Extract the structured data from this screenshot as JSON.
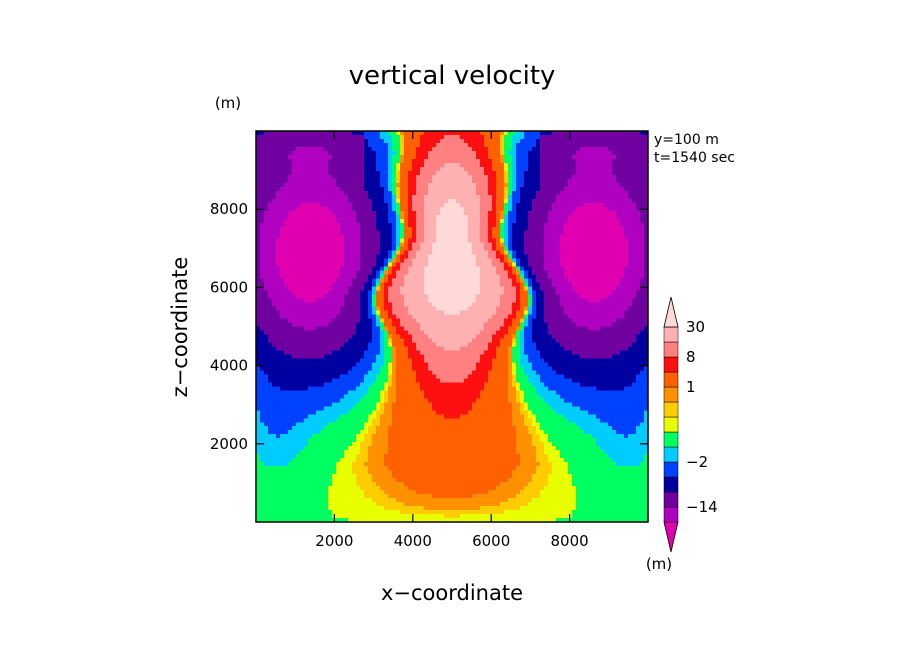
{
  "chart_data": {
    "type": "heatmap",
    "title": "vertical velocity",
    "xlabel": "x−coordinate",
    "ylabel": "z−coordinate",
    "y_unit": "(m)",
    "annotations": [
      "y=100 m",
      "t=1540 sec"
    ],
    "xlim": [
      0,
      10000
    ],
    "ylim": [
      0,
      10000
    ],
    "xticks": [
      2000,
      4000,
      6000,
      8000
    ],
    "xtick_labels": [
      "2000",
      "4000",
      "6000",
      "8000"
    ],
    "yticks": [
      2000,
      4000,
      6000,
      8000
    ],
    "ytick_labels": [
      "2000",
      "4000",
      "6000",
      "8000"
    ],
    "colorbar": {
      "unit": "(m)",
      "labels": [
        {
          "text": "30",
          "level": 30
        },
        {
          "text": "8",
          "level": 8
        },
        {
          "text": "1",
          "level": 1
        },
        {
          "text": "−2",
          "level": -2
        },
        {
          "text": "−14",
          "level": -14
        }
      ],
      "bands": [
        {
          "color": "#e000b0",
          "upper": -20
        },
        {
          "color": "#b000c0",
          "upper": -14
        },
        {
          "color": "#7000a0",
          "upper": -8
        },
        {
          "color": "#0000a0",
          "upper": -4
        },
        {
          "color": "#0040ff",
          "upper": -2
        },
        {
          "color": "#00ccff",
          "upper": -1
        },
        {
          "color": "#00ff60",
          "upper": 0
        },
        {
          "color": "#e8ff00",
          "upper": 0.25
        },
        {
          "color": "#ffcc00",
          "upper": 0.5
        },
        {
          "color": "#ff9000",
          "upper": 1
        },
        {
          "color": "#ff6000",
          "upper": 4
        },
        {
          "color": "#ff1010",
          "upper": 8
        },
        {
          "color": "#ff8080",
          "upper": 16
        },
        {
          "color": "#ffb0b0",
          "upper": 30
        },
        {
          "color": "#ffd8d8",
          "upper": 60
        }
      ]
    }
  }
}
